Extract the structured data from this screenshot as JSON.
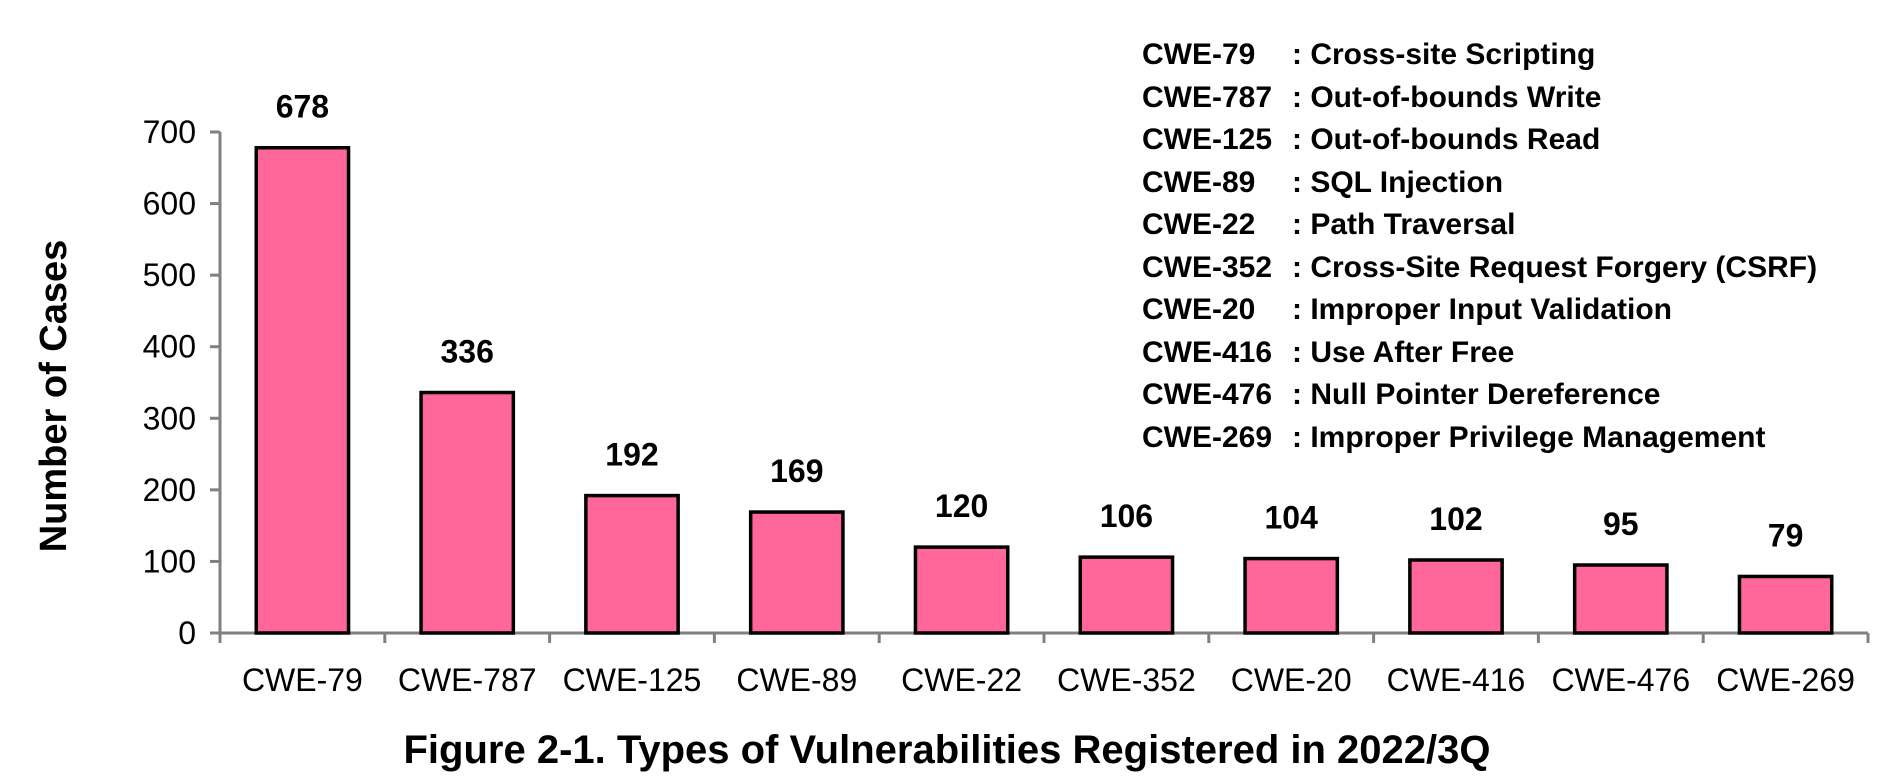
{
  "chart_data": {
    "type": "bar",
    "categories": [
      "CWE-79",
      "CWE-787",
      "CWE-125",
      "CWE-89",
      "CWE-22",
      "CWE-352",
      "CWE-20",
      "CWE-416",
      "CWE-476",
      "CWE-269"
    ],
    "values": [
      678,
      336,
      192,
      169,
      120,
      106,
      104,
      102,
      95,
      79
    ],
    "data_labels": [
      "678",
      "336",
      "192",
      "169",
      "120",
      "106",
      "104",
      "102",
      "95",
      "79"
    ],
    "ylabel": "Number of Cases",
    "xlabel": "",
    "ylim": [
      0,
      700
    ],
    "yticks": [
      0,
      100,
      200,
      300,
      400,
      500,
      600,
      700
    ],
    "ytick_labels": [
      "0",
      "100",
      "200",
      "300",
      "400",
      "500",
      "600",
      "700"
    ],
    "bar_color": "#ff6699",
    "grid": false
  },
  "legend": [
    {
      "code": "CWE-79",
      "desc": ": Cross-site Scripting"
    },
    {
      "code": "CWE-787",
      "desc": ": Out-of-bounds Write"
    },
    {
      "code": "CWE-125",
      "desc": ": Out-of-bounds Read"
    },
    {
      "code": "CWE-89",
      "desc": ": SQL Injection"
    },
    {
      "code": "CWE-22",
      "desc": ": Path Traversal"
    },
    {
      "code": "CWE-352",
      "desc": ": Cross-Site Request Forgery (CSRF)"
    },
    {
      "code": "CWE-20",
      "desc": ": Improper Input Validation"
    },
    {
      "code": "CWE-416",
      "desc": ": Use After Free"
    },
    {
      "code": "CWE-476",
      "desc": ": Null Pointer Dereference"
    },
    {
      "code": "CWE-269",
      "desc": ": Improper Privilege Management"
    }
  ],
  "caption": "Figure 2-1. Types of Vulnerabilities Registered in 2022/3Q"
}
